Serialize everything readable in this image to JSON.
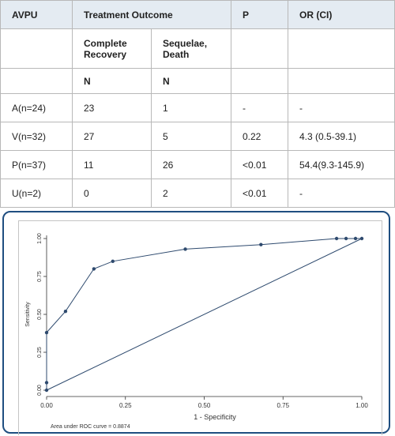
{
  "table": {
    "headers": {
      "avpu": "AVPU",
      "outcome": "Treatment Outcome",
      "p": "P",
      "or": "OR (CI)"
    },
    "subheaders": {
      "complete": [
        "Complete",
        "Recovery"
      ],
      "sequelae": [
        "Sequelae,",
        "Death"
      ]
    },
    "n_row": [
      "N",
      "N"
    ],
    "rows": [
      {
        "label": "A(n=24)",
        "complete": "23",
        "sequelae": "1",
        "p": "-",
        "or": "-"
      },
      {
        "label": "V(n=32)",
        "complete": "27",
        "sequelae": "5",
        "p": "0.22",
        "or": "4.3 (0.5-39.1)"
      },
      {
        "label": "P(n=37)",
        "complete": "11",
        "sequelae": "26",
        "p": "<0.01",
        "or": "54.4(9.3-145.9)"
      },
      {
        "label": "U(n=2)",
        "complete": "0",
        "sequelae": "2",
        "p": "<0.01",
        "or": "-"
      }
    ]
  },
  "chart_data": {
    "type": "line",
    "title": "",
    "xlabel": "1 - Specificity",
    "ylabel": "Sensitivity",
    "xlim": [
      0,
      1
    ],
    "ylim": [
      0,
      1
    ],
    "x_ticks": [
      "0.00",
      "0.25",
      "0.50",
      "0.75",
      "1.00"
    ],
    "y_ticks": [
      "0.00",
      "0.25",
      "0.50",
      "0.75",
      "1.00"
    ],
    "grid": false,
    "series": [
      {
        "x": [
          0.0,
          0.0,
          0.0,
          0.06,
          0.15,
          0.21,
          0.44,
          0.68,
          0.92,
          0.95,
          0.98,
          1.0
        ],
        "y": [
          0.0,
          0.05,
          0.38,
          0.52,
          0.8,
          0.85,
          0.93,
          0.96,
          1.0,
          1.0,
          1.0,
          1.0
        ]
      }
    ],
    "reference_line": {
      "x": [
        0,
        1
      ],
      "y": [
        0,
        1
      ]
    },
    "annotation": "Area under ROC curve = 0.8874",
    "colors": {
      "curve": "#2e4a6e",
      "frame": "#1f4e80"
    }
  }
}
